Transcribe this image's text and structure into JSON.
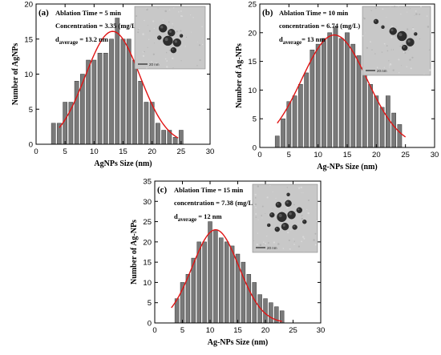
{
  "figure": {
    "background": "#ffffff",
    "bar_fill": "#7a7a7a",
    "bar_stroke": "#3a3a3a",
    "curve_color": "#e01414"
  },
  "chart_data": [
    {
      "type": "bar",
      "panel_label": "(a)",
      "annotation": {
        "line1": "Ablation Time = 5 min",
        "line2": "Concentration = 3.35 (mg/L)",
        "line3_d": "d",
        "line3_sub": "average",
        "line3_val": " = 13.2 nm"
      },
      "inset": {
        "scale_text": "20 nm"
      },
      "xlabel": "AgNPs Size (nm)",
      "ylabel": "Number of AgNPs",
      "xlim": [
        0,
        30
      ],
      "ylim": [
        0,
        20
      ],
      "xticks": [
        0,
        5,
        10,
        15,
        20,
        25,
        30
      ],
      "yticks": [
        0,
        5,
        10,
        15,
        20
      ],
      "x": [
        3,
        4,
        5,
        6,
        7,
        8,
        9,
        10,
        11,
        12,
        13,
        14,
        15,
        16,
        17,
        18,
        19,
        20,
        21,
        22,
        23,
        24,
        25
      ],
      "values": [
        3,
        3,
        6,
        6,
        9,
        10,
        12,
        12,
        13,
        13,
        15,
        18,
        15,
        15,
        12,
        9,
        6,
        6,
        3,
        2,
        2,
        1,
        2
      ],
      "fit": {
        "type": "gaussian",
        "center": 13.2,
        "sigma": 4.7,
        "amplitude": 16.1,
        "x_range": [
          4,
          24.5
        ]
      }
    },
    {
      "type": "bar",
      "panel_label": "(b)",
      "annotation": {
        "line1": "Ablation Time = 10 min",
        "line2": "concentration = 6.74 (mg/L)",
        "line3_d": "d",
        "line3_sub": "average",
        "line3_val": "= 13 nm"
      },
      "inset": {
        "scale_text": "20 nm"
      },
      "xlabel": "Ag-NPs Size (nm)",
      "ylabel": "Number of Ag-NPs",
      "xlim": [
        0,
        30
      ],
      "ylim": [
        0,
        25
      ],
      "xticks": [
        0,
        5,
        10,
        15,
        20,
        25,
        30
      ],
      "yticks": [
        0,
        5,
        10,
        15,
        20,
        25
      ],
      "x": [
        3,
        4,
        5,
        6,
        7,
        8,
        9,
        10,
        11,
        12,
        13,
        14,
        15,
        16,
        17,
        18,
        19,
        20,
        21,
        22,
        23,
        24
      ],
      "values": [
        2,
        5,
        8,
        9,
        11,
        13,
        17,
        18,
        19,
        20,
        21,
        19,
        20,
        18,
        16,
        14,
        11,
        9,
        7,
        9,
        6,
        4
      ],
      "fit": {
        "type": "gaussian",
        "center": 12.8,
        "sigma": 5.6,
        "amplitude": 19.6,
        "x_range": [
          3,
          25
        ]
      }
    },
    {
      "type": "bar",
      "panel_label": "(c)",
      "annotation": {
        "line1": "Ablation Time = 15 min",
        "line2": "concentration = 7.38 (mg/L)",
        "line3_d": "d",
        "line3_sub": "average",
        "line3_val": " = 12 nm"
      },
      "inset": {
        "scale_text": "20 nm"
      },
      "xlabel": "Ag-NPs Size (nm)",
      "ylabel": "Number of Ag-NPs",
      "xlim": [
        0,
        30
      ],
      "ylim": [
        0,
        35
      ],
      "xticks": [
        0,
        5,
        10,
        15,
        20,
        25,
        30
      ],
      "yticks": [
        0,
        5,
        10,
        15,
        20,
        25,
        30,
        35
      ],
      "x": [
        4,
        5,
        6,
        7,
        8,
        9,
        10,
        11,
        12,
        13,
        14,
        15,
        16,
        17,
        18,
        19,
        20,
        21,
        22,
        23
      ],
      "values": [
        6,
        10,
        12,
        16,
        20,
        20,
        25,
        23,
        21,
        20,
        19,
        17,
        15,
        12,
        10,
        7,
        6,
        5,
        4,
        3
      ],
      "fit": {
        "type": "gaussian",
        "center": 11,
        "sigma": 4.2,
        "amplitude": 23,
        "x_range": [
          3,
          23
        ]
      }
    }
  ]
}
